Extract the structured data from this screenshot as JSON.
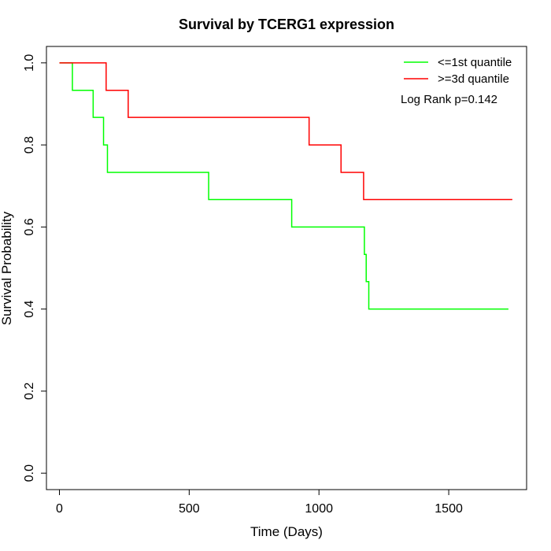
{
  "chart_data": {
    "type": "line",
    "title": "Survival by TCERG1 expression",
    "xlabel": "Time (Days)",
    "ylabel": "Survival Probability",
    "xlim": [
      -50,
      1800
    ],
    "ylim": [
      -0.04,
      1.04
    ],
    "x_ticks": [
      0,
      500,
      1000,
      1500
    ],
    "y_ticks": [
      0.0,
      0.2,
      0.4,
      0.6,
      0.8,
      1.0
    ],
    "x_tick_labels": [
      "0",
      "500",
      "1000",
      "1500"
    ],
    "y_tick_labels": [
      "0.0",
      "0.2",
      "0.4",
      "0.6",
      "0.8",
      "1.0"
    ],
    "grid": false,
    "legend_position": "top-right",
    "annotation": "Log Rank p=0.142",
    "series": [
      {
        "name": "<=1st quantile",
        "color": "#00ff00",
        "step": true,
        "x": [
          0,
          50,
          130,
          170,
          185,
          575,
          895,
          1175,
          1182,
          1192,
          1730
        ],
        "y": [
          1.0,
          0.933,
          0.867,
          0.8,
          0.733,
          0.667,
          0.6,
          0.533,
          0.467,
          0.4,
          0.4
        ]
      },
      {
        "name": ">=3d quantile",
        "color": "#ff0000",
        "step": true,
        "x": [
          0,
          180,
          265,
          962,
          1085,
          1172,
          1745
        ],
        "y": [
          1.0,
          0.933,
          0.867,
          0.8,
          0.733,
          0.667,
          0.667
        ]
      }
    ]
  }
}
